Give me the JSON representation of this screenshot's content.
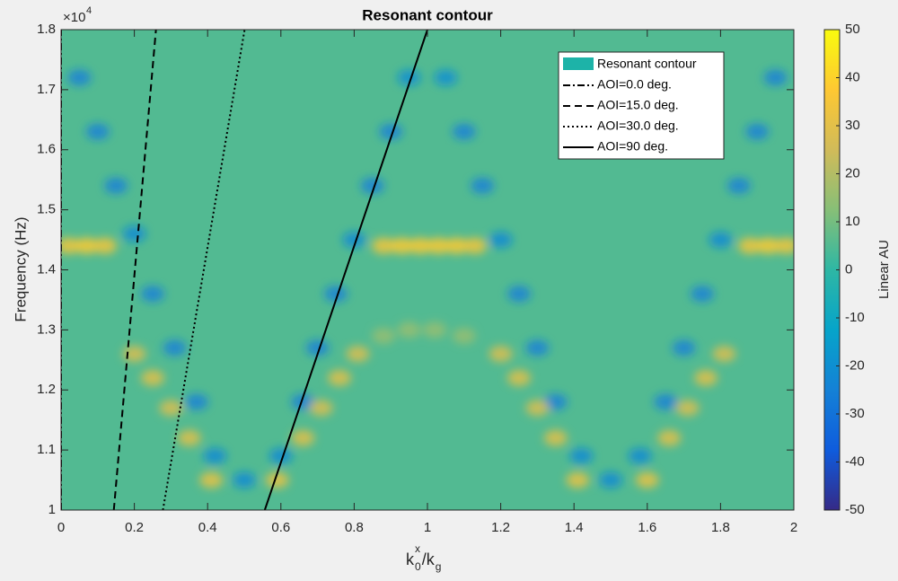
{
  "chart_data": {
    "type": "contour",
    "title": "Resonant contour",
    "ylabel": "Frequency (Hz)",
    "xlabel_parts": [
      {
        "text": "k",
        "role": "base"
      },
      {
        "text": "x",
        "role": "sup"
      },
      {
        "text": "0",
        "role": "sub"
      },
      {
        "text": "/k",
        "role": "base"
      },
      {
        "text": "g",
        "role": "sub"
      }
    ],
    "y_multiplier": {
      "base": "×10",
      "exp": "4"
    },
    "xlim": [
      0,
      2
    ],
    "xticks": [
      0,
      0.2,
      0.4,
      0.6,
      0.8,
      1,
      1.2,
      1.4,
      1.6,
      1.8,
      2
    ],
    "ylim": [
      10000,
      18000
    ],
    "yticks": [
      {
        "value": 10000,
        "label": "1"
      },
      {
        "value": 11000,
        "label": "1.1"
      },
      {
        "value": 12000,
        "label": "1.2"
      },
      {
        "value": 13000,
        "label": "1.3"
      },
      {
        "value": 14000,
        "label": "1.4"
      },
      {
        "value": 15000,
        "label": "1.5"
      },
      {
        "value": 16000,
        "label": "1.6"
      },
      {
        "value": 17000,
        "label": "1.7"
      },
      {
        "value": 18000,
        "label": "1.8"
      }
    ],
    "colormap": "parula",
    "clim": [
      -50,
      50
    ],
    "cticks": [
      -50,
      -40,
      -30,
      -20,
      -10,
      0,
      10,
      20,
      30,
      40,
      50
    ],
    "clabel": "Linear AU",
    "heatmap": {
      "name": "Resonant contour",
      "color": "#1db3a8",
      "background": 5,
      "x": [
        0.05,
        0.1,
        0.15,
        0.2,
        0.25,
        0.31,
        0.37,
        0.42,
        0.5,
        0.6,
        0.66,
        0.7,
        0.75,
        0.8,
        0.85,
        0.9,
        0.95,
        1.05,
        1.1,
        1.15,
        1.2,
        1.25,
        1.3,
        1.35,
        1.42,
        1.5,
        1.58,
        1.65,
        1.7,
        1.75,
        1.8,
        1.85,
        1.9,
        1.95,
        0.02,
        0.07,
        0.12,
        0.88,
        0.93,
        0.98,
        1.03,
        1.08,
        1.13,
        1.88,
        1.93,
        1.98,
        0.2,
        0.25,
        0.3,
        0.35,
        0.41,
        0.59,
        0.66,
        0.71,
        0.76,
        0.81,
        1.2,
        1.25,
        1.3,
        1.35,
        1.41,
        1.6,
        1.66,
        1.71,
        1.76,
        1.81,
        0.88,
        0.95,
        1.02,
        1.1
      ],
      "y": [
        17200,
        16300,
        15400,
        14600,
        13600,
        12700,
        11800,
        10900,
        10500,
        10900,
        11800,
        12700,
        13600,
        14500,
        15400,
        16300,
        17200,
        17200,
        16300,
        15400,
        14500,
        13600,
        12700,
        11800,
        10900,
        10500,
        10900,
        11800,
        12700,
        13600,
        14500,
        15400,
        16300,
        17200,
        14400,
        14400,
        14400,
        14400,
        14400,
        14400,
        14400,
        14400,
        14400,
        14400,
        14400,
        14400,
        12600,
        12200,
        11700,
        11200,
        10500,
        10500,
        11200,
        11700,
        12200,
        12600,
        12600,
        12200,
        11700,
        11200,
        10500,
        10500,
        11200,
        11700,
        12200,
        12600,
        12900,
        13000,
        13000,
        12900
      ],
      "z": [
        -25,
        -25,
        -25,
        -22,
        -25,
        -25,
        -25,
        -22,
        -22,
        -22,
        -25,
        -25,
        -25,
        -22,
        -25,
        -25,
        -20,
        -20,
        -25,
        -25,
        -22,
        -25,
        -25,
        -25,
        -22,
        -22,
        -22,
        -25,
        -25,
        -25,
        -22,
        -25,
        -25,
        -25,
        35,
        38,
        35,
        35,
        38,
        38,
        38,
        38,
        35,
        35,
        38,
        35,
        28,
        30,
        28,
        30,
        32,
        32,
        30,
        28,
        30,
        28,
        28,
        30,
        28,
        30,
        32,
        32,
        30,
        28,
        30,
        28,
        15,
        15,
        15,
        15
      ]
    },
    "legend": "northeast",
    "series": [
      {
        "name": "AOI=0.0 deg.",
        "color": "#000000",
        "linestyle": "-.",
        "x": [
          0,
          0
        ],
        "y": [
          10000,
          18000
        ]
      },
      {
        "name": "AOI=15.0 deg.",
        "color": "#000000",
        "linestyle": "--",
        "x": [
          0.144,
          0.259
        ],
        "y": [
          10000,
          18000
        ]
      },
      {
        "name": "AOI=30.0 deg.",
        "color": "#000000",
        "linestyle": ":",
        "x": [
          0.278,
          0.501
        ],
        "y": [
          10000,
          18000
        ]
      },
      {
        "name": "AOI=90 deg.",
        "color": "#000000",
        "linestyle": "-",
        "x": [
          0.556,
          1.0
        ],
        "y": [
          10000,
          18000
        ]
      }
    ]
  }
}
